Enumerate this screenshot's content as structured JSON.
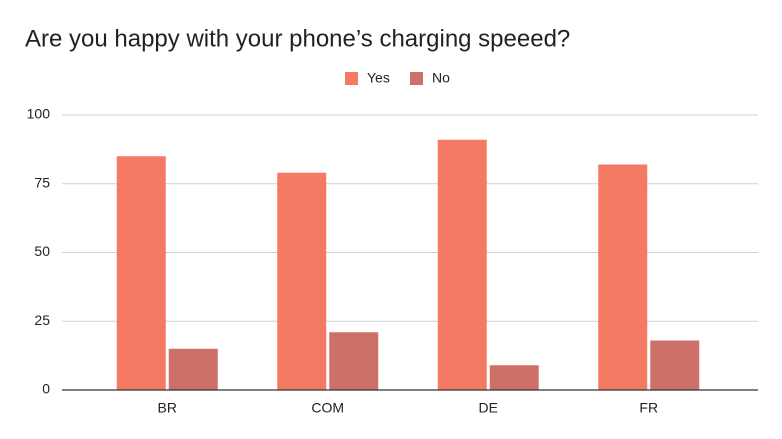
{
  "chart_data": {
    "type": "bar",
    "title": "Are you happy with your phone’s charging speeed?",
    "categories": [
      "BR",
      "COM",
      "DE",
      "FR"
    ],
    "series": [
      {
        "name": "Yes",
        "color": "#f47a64",
        "values": [
          85,
          79,
          91,
          82
        ]
      },
      {
        "name": "No",
        "color": "#cd7068",
        "values": [
          15,
          21,
          9,
          18
        ]
      }
    ],
    "ylim": [
      0,
      100
    ],
    "yticks": [
      0,
      25,
      50,
      75,
      100
    ],
    "grid": true,
    "legend": "top"
  }
}
